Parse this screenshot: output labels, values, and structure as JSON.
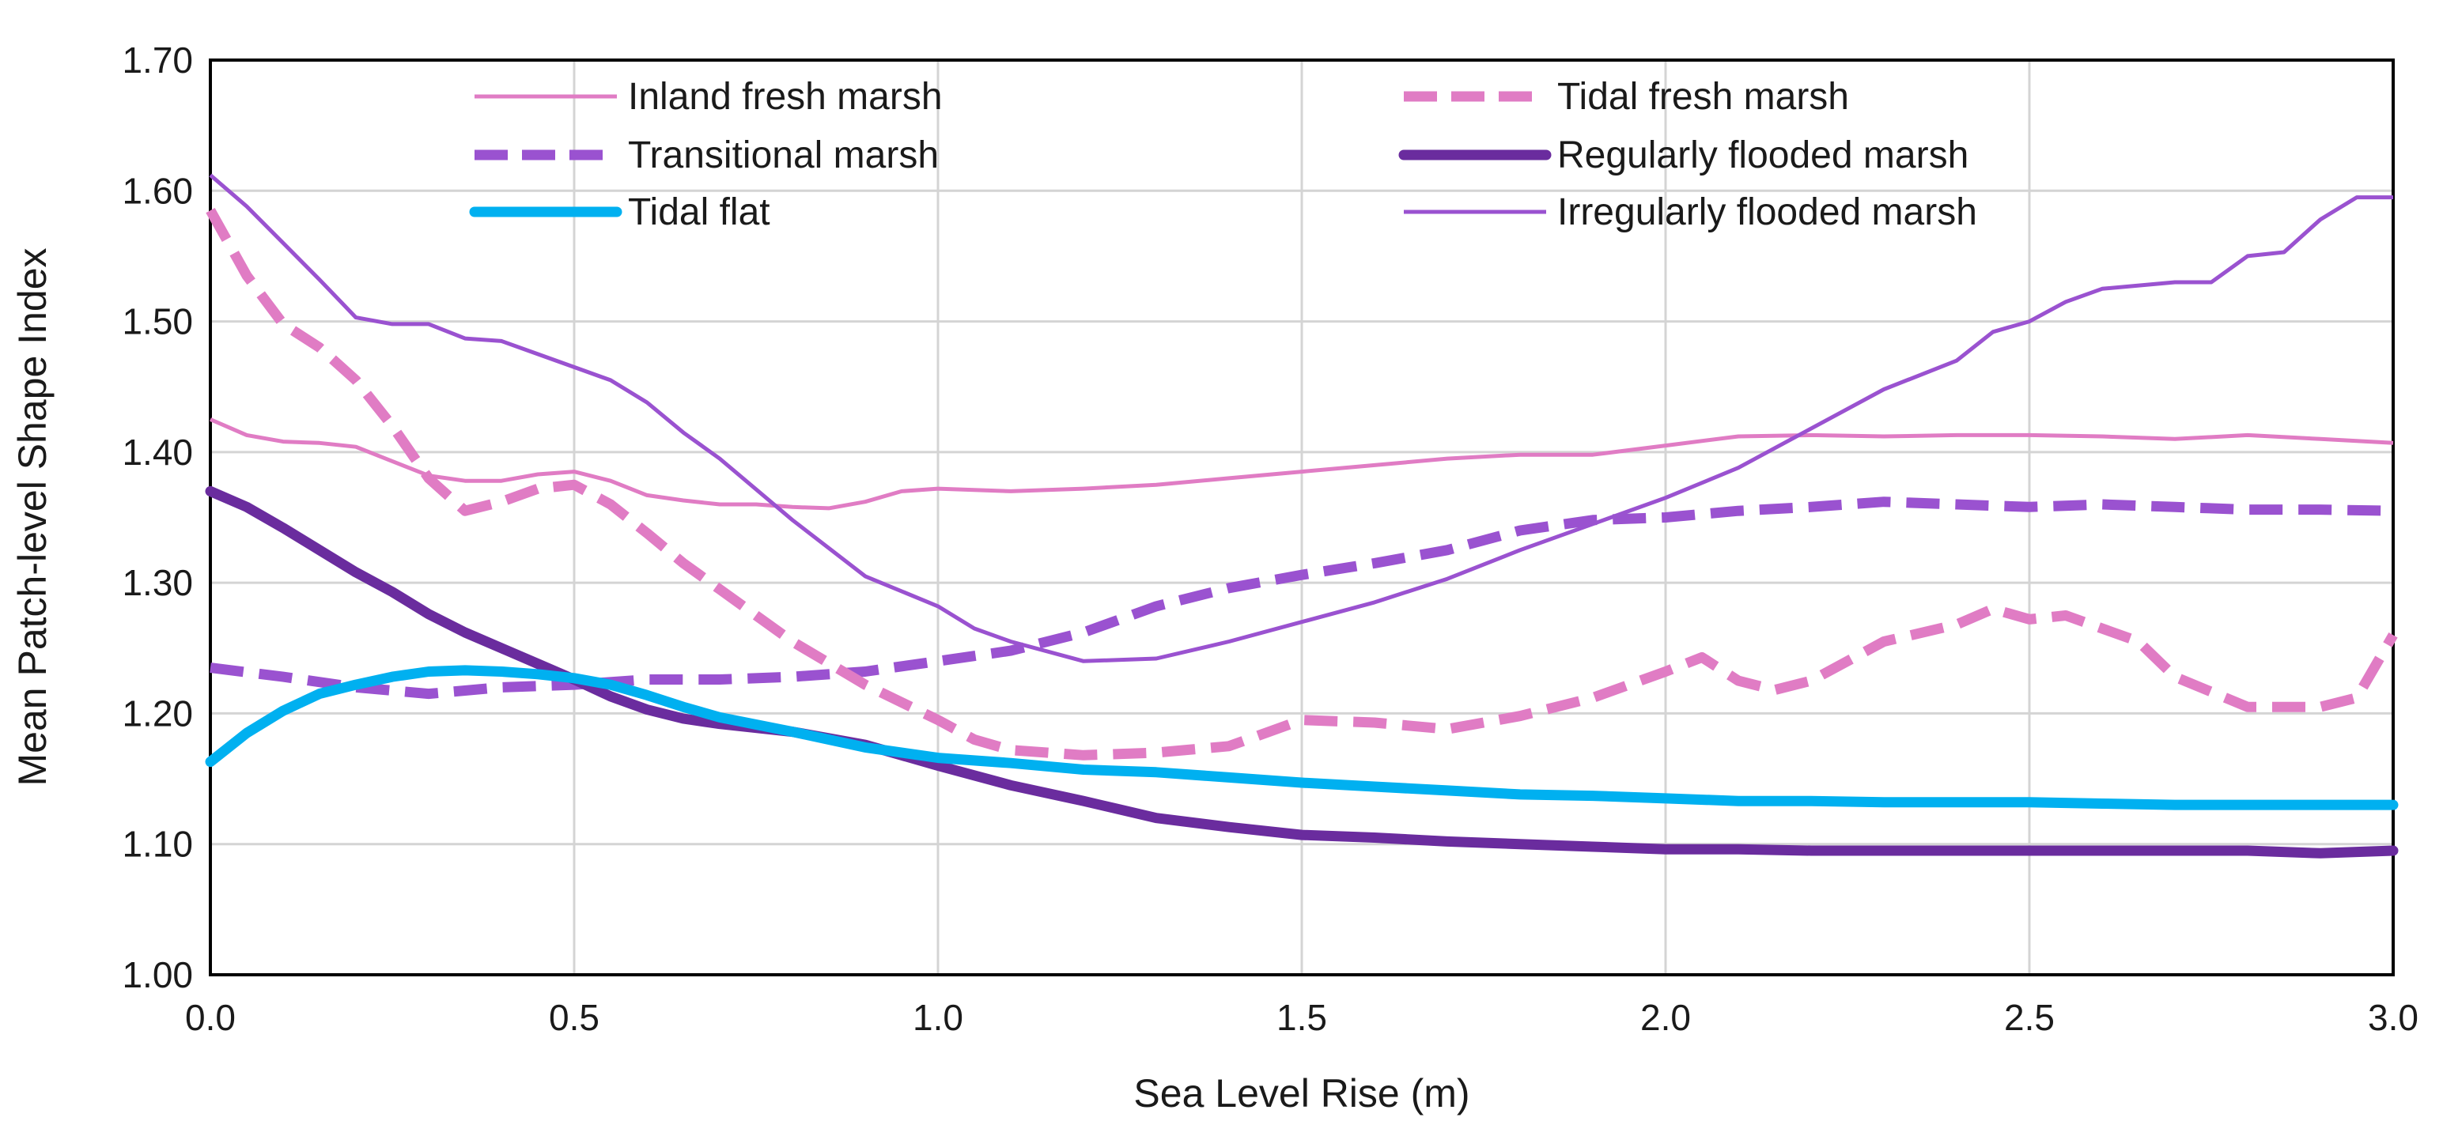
{
  "chart_data": {
    "type": "line",
    "title": "",
    "xlabel": "Sea Level Rise (m)",
    "ylabel": "Mean Patch-level Shape Index",
    "xlim": [
      0,
      3
    ],
    "ylim": [
      1.0,
      1.7
    ],
    "grid": true,
    "legend_position": "top",
    "x_ticks": [
      "0.0",
      "0.5",
      "1.0",
      "1.5",
      "2.0",
      "2.5",
      "3.0"
    ],
    "y_ticks": [
      "1.00",
      "1.10",
      "1.20",
      "1.30",
      "1.40",
      "1.50",
      "1.60",
      "1.70"
    ],
    "x_tick_values": [
      0,
      0.5,
      1.0,
      1.5,
      2.0,
      2.5,
      3.0
    ],
    "y_tick_values": [
      1.0,
      1.1,
      1.2,
      1.3,
      1.4,
      1.5,
      1.6,
      1.7
    ],
    "series": [
      {
        "name": "Inland fresh marsh",
        "color": "#e07cc4",
        "style": "thin",
        "x": [
          0,
          0.05,
          0.1,
          0.15,
          0.2,
          0.25,
          0.3,
          0.35,
          0.4,
          0.45,
          0.5,
          0.55,
          0.6,
          0.65,
          0.7,
          0.75,
          0.8,
          0.85,
          0.9,
          0.95,
          1.0,
          1.1,
          1.2,
          1.3,
          1.4,
          1.5,
          1.6,
          1.7,
          1.8,
          1.9,
          2.0,
          2.1,
          2.2,
          2.3,
          2.4,
          2.5,
          2.6,
          2.7,
          2.8,
          2.9,
          3.0
        ],
        "values": [
          1.425,
          1.413,
          1.408,
          1.407,
          1.404,
          1.393,
          1.382,
          1.378,
          1.378,
          1.383,
          1.385,
          1.378,
          1.367,
          1.363,
          1.36,
          1.36,
          1.358,
          1.357,
          1.362,
          1.37,
          1.372,
          1.37,
          1.372,
          1.375,
          1.38,
          1.385,
          1.39,
          1.395,
          1.398,
          1.398,
          1.405,
          1.412,
          1.413,
          1.412,
          1.413,
          1.413,
          1.412,
          1.41,
          1.413,
          1.41,
          1.407
        ]
      },
      {
        "name": "Tidal fresh marsh",
        "color": "#e07cc4",
        "style": "dashed",
        "x": [
          0,
          0.05,
          0.1,
          0.15,
          0.2,
          0.25,
          0.3,
          0.35,
          0.4,
          0.45,
          0.5,
          0.55,
          0.6,
          0.65,
          0.7,
          0.8,
          0.9,
          1.0,
          1.05,
          1.1,
          1.2,
          1.3,
          1.4,
          1.5,
          1.6,
          1.7,
          1.8,
          1.9,
          2.0,
          2.05,
          2.1,
          2.15,
          2.2,
          2.3,
          2.4,
          2.45,
          2.5,
          2.55,
          2.65,
          2.7,
          2.8,
          2.9,
          2.95,
          3.0
        ],
        "values": [
          1.585,
          1.535,
          1.498,
          1.48,
          1.455,
          1.42,
          1.38,
          1.355,
          1.362,
          1.372,
          1.375,
          1.36,
          1.338,
          1.315,
          1.295,
          1.255,
          1.222,
          1.195,
          1.18,
          1.172,
          1.168,
          1.17,
          1.175,
          1.195,
          1.193,
          1.188,
          1.198,
          1.212,
          1.232,
          1.243,
          1.225,
          1.218,
          1.225,
          1.255,
          1.268,
          1.28,
          1.272,
          1.275,
          1.255,
          1.228,
          1.205,
          1.205,
          1.212,
          1.26
        ]
      },
      {
        "name": "Transitional marsh",
        "color": "#9a52d0",
        "style": "dashed",
        "x": [
          0,
          0.1,
          0.2,
          0.3,
          0.4,
          0.5,
          0.6,
          0.7,
          0.8,
          0.9,
          1.0,
          1.1,
          1.2,
          1.3,
          1.4,
          1.5,
          1.6,
          1.7,
          1.8,
          1.9,
          2.0,
          2.1,
          2.2,
          2.3,
          2.4,
          2.5,
          2.6,
          2.7,
          2.8,
          2.9,
          3.0
        ],
        "values": [
          1.235,
          1.228,
          1.22,
          1.215,
          1.22,
          1.222,
          1.226,
          1.226,
          1.228,
          1.232,
          1.24,
          1.248,
          1.262,
          1.282,
          1.296,
          1.306,
          1.315,
          1.325,
          1.34,
          1.348,
          1.35,
          1.355,
          1.358,
          1.362,
          1.36,
          1.358,
          1.36,
          1.358,
          1.356,
          1.356,
          1.355
        ]
      },
      {
        "name": "Regularly flooded marsh",
        "color": "#6a2c9e",
        "style": "thick",
        "x": [
          0,
          0.05,
          0.1,
          0.15,
          0.2,
          0.25,
          0.3,
          0.35,
          0.4,
          0.45,
          0.5,
          0.55,
          0.6,
          0.65,
          0.7,
          0.8,
          0.9,
          1.0,
          1.1,
          1.2,
          1.3,
          1.4,
          1.5,
          1.6,
          1.7,
          1.8,
          1.9,
          2.0,
          2.1,
          2.2,
          2.3,
          2.4,
          2.5,
          2.6,
          2.7,
          2.8,
          2.9,
          3.0
        ],
        "values": [
          1.37,
          1.358,
          1.342,
          1.325,
          1.308,
          1.293,
          1.276,
          1.262,
          1.25,
          1.238,
          1.226,
          1.213,
          1.203,
          1.196,
          1.192,
          1.186,
          1.176,
          1.16,
          1.145,
          1.133,
          1.12,
          1.113,
          1.107,
          1.105,
          1.102,
          1.1,
          1.098,
          1.096,
          1.096,
          1.095,
          1.095,
          1.095,
          1.095,
          1.095,
          1.095,
          1.095,
          1.093,
          1.095
        ]
      },
      {
        "name": "Tidal flat",
        "color": "#00b0f0",
        "style": "thick",
        "x": [
          0,
          0.05,
          0.1,
          0.15,
          0.2,
          0.25,
          0.3,
          0.35,
          0.4,
          0.45,
          0.5,
          0.55,
          0.6,
          0.65,
          0.7,
          0.8,
          0.9,
          1.0,
          1.1,
          1.2,
          1.3,
          1.4,
          1.5,
          1.6,
          1.7,
          1.8,
          1.9,
          2.0,
          2.1,
          2.2,
          2.3,
          2.4,
          2.5,
          2.6,
          2.7,
          2.8,
          2.9,
          3.0
        ],
        "values": [
          1.163,
          1.185,
          1.202,
          1.215,
          1.222,
          1.228,
          1.232,
          1.233,
          1.232,
          1.23,
          1.227,
          1.222,
          1.214,
          1.205,
          1.197,
          1.186,
          1.174,
          1.166,
          1.162,
          1.157,
          1.155,
          1.151,
          1.147,
          1.144,
          1.141,
          1.138,
          1.137,
          1.135,
          1.133,
          1.133,
          1.132,
          1.132,
          1.132,
          1.131,
          1.13,
          1.13,
          1.13,
          1.13
        ]
      },
      {
        "name": "Irregularly flooded marsh",
        "color": "#9a52d0",
        "style": "thin",
        "x": [
          0,
          0.05,
          0.1,
          0.15,
          0.2,
          0.25,
          0.3,
          0.35,
          0.4,
          0.45,
          0.5,
          0.55,
          0.6,
          0.65,
          0.7,
          0.8,
          0.9,
          1.0,
          1.05,
          1.1,
          1.2,
          1.3,
          1.4,
          1.5,
          1.6,
          1.7,
          1.8,
          1.9,
          2.0,
          2.1,
          2.2,
          2.3,
          2.4,
          2.45,
          2.5,
          2.55,
          2.6,
          2.7,
          2.75,
          2.8,
          2.85,
          2.9,
          2.95,
          3.0
        ],
        "values": [
          1.612,
          1.588,
          1.56,
          1.532,
          1.503,
          1.498,
          1.498,
          1.487,
          1.485,
          1.475,
          1.465,
          1.455,
          1.438,
          1.415,
          1.395,
          1.348,
          1.305,
          1.282,
          1.265,
          1.255,
          1.24,
          1.242,
          1.255,
          1.27,
          1.285,
          1.303,
          1.325,
          1.345,
          1.365,
          1.388,
          1.418,
          1.448,
          1.47,
          1.492,
          1.5,
          1.515,
          1.525,
          1.53,
          1.53,
          1.55,
          1.553,
          1.578,
          1.595,
          1.595
        ]
      }
    ]
  }
}
